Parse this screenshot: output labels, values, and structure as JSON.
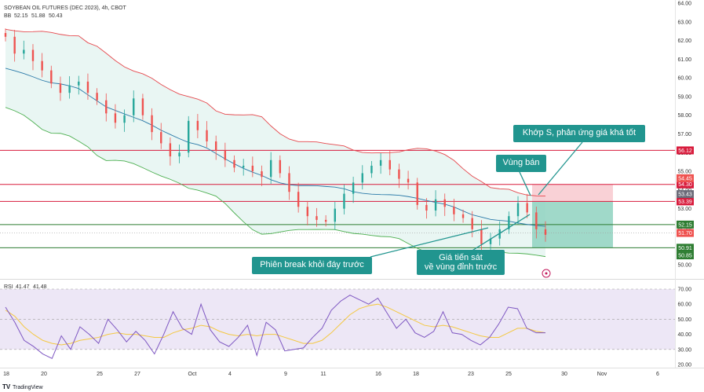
{
  "header": {
    "symbol_line": "SOYBEAN OIL FUTURES (DEC 2023), 4h, CBOT",
    "bb_label": "BB",
    "bb_values": [
      "52.15",
      "51.88",
      "50.43"
    ]
  },
  "rsi_legend": {
    "label": "RSI",
    "values": [
      "41.47",
      "41.48"
    ]
  },
  "footer": {
    "brand": "TradingView"
  },
  "colors": {
    "up": "#26a69a",
    "down": "#ef5350",
    "bb_upper": "#e5484d",
    "bb_lower": "#4caf50",
    "bb_basis": "#2979a8",
    "bb_fill": "#e9f6f3",
    "level_red": "#d81b3c",
    "level_green": "#2e7d32",
    "rsi_line": "#7e57c2",
    "rsi_ma": "#f4c842",
    "rsi_band": "#ede7f6",
    "callout": "#21958f",
    "stop_zone": "#f8c9cf",
    "target_zone": "#8fd2bf"
  },
  "chart_data": [
    {
      "type": "line",
      "title": "SOYBEAN OIL FUTURES (DEC 2023), 4h, CBOT",
      "subtype": "candlestick",
      "x_ticks": [
        "18",
        "20",
        "25",
        "27",
        "Oct",
        "4",
        "9",
        "11",
        "16",
        "18",
        "23",
        "25",
        "30",
        "Nov",
        "6"
      ],
      "y_ticks": [
        "64.00",
        "63.00",
        "62.00",
        "61.00",
        "60.00",
        "59.00",
        "58.00",
        "57.00",
        "56.00",
        "55.00",
        "54.00",
        "53.00",
        "52.00",
        "51.00",
        "50.00"
      ],
      "ylim": [
        49.6,
        64.0
      ],
      "series": [
        {
          "name": "BB",
          "role": "basis"
        },
        {
          "role": "upper"
        },
        {
          "role": "lower"
        }
      ],
      "close_path": [
        62.2,
        61.3,
        61.5,
        60.9,
        60.4,
        59.7,
        59.2,
        59.6,
        59.8,
        59.2,
        58.8,
        58.1,
        57.6,
        58.0,
        58.9,
        58.0,
        57.1,
        56.5,
        55.8,
        56.0,
        57.7,
        57.2,
        56.6,
        56.1,
        55.6,
        55.2,
        55.3,
        55.0,
        54.7,
        55.6,
        54.9,
        53.9,
        53.1,
        52.6,
        52.4,
        52.3,
        53.0,
        53.8,
        54.4,
        54.9,
        55.3,
        55.6,
        55.1,
        54.6,
        54.4,
        53.2,
        52.9,
        53.5,
        53.1,
        52.7,
        52.5,
        51.9,
        51.1,
        51.4,
        51.9,
        52.6,
        53.3,
        52.8,
        51.9,
        51.6
      ],
      "horizontal_levels": [
        {
          "label": "56.12",
          "value": 56.12,
          "color": "red"
        },
        {
          "label": "54.30",
          "value": 54.3,
          "color": "red"
        },
        {
          "label": "53.39",
          "value": 53.39,
          "color": "red"
        },
        {
          "label": "52.15",
          "value": 52.15,
          "color": "green"
        },
        {
          "label": "50.91",
          "value": 50.91,
          "color": "green"
        }
      ],
      "price_tags": [
        "54.45",
        "53.43",
        "51.70",
        "50.85"
      ],
      "position_tool": {
        "entry": 53.39,
        "stop": 54.3,
        "target": 50.91
      },
      "annotations": [
        "Khớp S, phản ứng giá khá tốt",
        "Vùng bán",
        "Phiên break khỏi đáy trước",
        "Giá tiến sát\nvề vùng đỉnh trước"
      ]
    },
    {
      "type": "line",
      "title": "RSI",
      "y_ticks": [
        "70.00",
        "60.00",
        "50.00",
        "40.00",
        "30.00",
        "20.00"
      ],
      "ylim": [
        15,
        75
      ],
      "band": [
        30,
        70
      ],
      "rsi_path": [
        58,
        48,
        36,
        32,
        27,
        24,
        39,
        30,
        45,
        40,
        34,
        50,
        43,
        35,
        42,
        36,
        27,
        40,
        55,
        44,
        40,
        60,
        43,
        35,
        32,
        38,
        46,
        26,
        48,
        43,
        29,
        30,
        31,
        38,
        44,
        56,
        62,
        66,
        63,
        60,
        64,
        54,
        44,
        50,
        41,
        38,
        42,
        55,
        41,
        40,
        36,
        33,
        38,
        47,
        58,
        57,
        44,
        41,
        41
      ],
      "ma_path": [
        56,
        52,
        45,
        40,
        36,
        34,
        33,
        34,
        36,
        37,
        38,
        40,
        41,
        40,
        40,
        39,
        38,
        38,
        41,
        43,
        44,
        46,
        45,
        42,
        40,
        39,
        40,
        39,
        40,
        40,
        38,
        36,
        34,
        34,
        36,
        41,
        47,
        53,
        57,
        59,
        60,
        58,
        55,
        52,
        49,
        46,
        45,
        46,
        45,
        43,
        41,
        39,
        38,
        38,
        41,
        44,
        44,
        42,
        41
      ]
    }
  ]
}
